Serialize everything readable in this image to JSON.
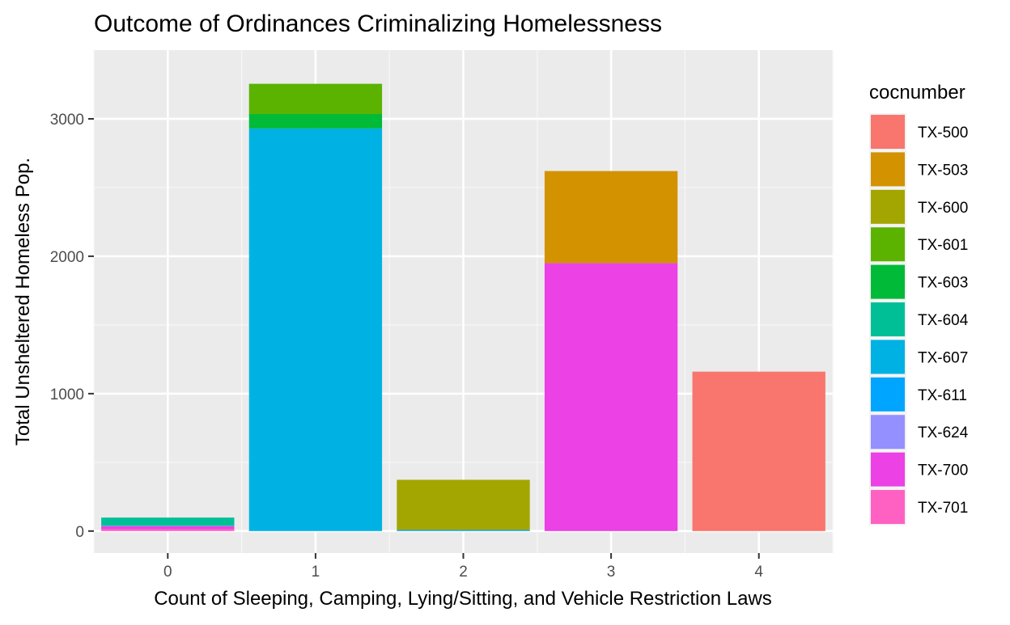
{
  "chart_data": {
    "type": "bar",
    "stacked": true,
    "title": "Outcome of Ordinances Criminalizing Homelessness",
    "xlabel": "Count of Sleeping, Camping, Lying/Sitting, and Vehicle Restriction Laws",
    "ylabel": "Total Unsheltered Homeless Pop.",
    "categories": [
      "0",
      "1",
      "2",
      "3",
      "4"
    ],
    "xlim": [
      -0.5,
      4.5
    ],
    "ylim": [
      -160,
      3500
    ],
    "yticks": [
      0,
      1000,
      2000,
      3000
    ],
    "grid": true,
    "legend": {
      "title": "cocnumber",
      "position": "right"
    },
    "series": [
      {
        "name": "TX-500",
        "color": "#F8766D",
        "values": [
          0,
          0,
          0,
          0,
          1160
        ]
      },
      {
        "name": "TX-503",
        "color": "#D39200",
        "values": [
          0,
          0,
          0,
          670,
          0
        ]
      },
      {
        "name": "TX-600",
        "color": "#A3A500",
        "values": [
          0,
          0,
          365,
          0,
          0
        ]
      },
      {
        "name": "TX-601",
        "color": "#5BB300",
        "values": [
          0,
          220,
          0,
          0,
          0
        ]
      },
      {
        "name": "TX-603",
        "color": "#00BA38",
        "values": [
          0,
          105,
          0,
          0,
          0
        ]
      },
      {
        "name": "TX-604",
        "color": "#00BF97",
        "values": [
          60,
          0,
          0,
          0,
          0
        ]
      },
      {
        "name": "TX-607",
        "color": "#00B2E4",
        "values": [
          0,
          2930,
          0,
          0,
          0
        ]
      },
      {
        "name": "TX-611",
        "color": "#00A5FF",
        "values": [
          0,
          0,
          8,
          0,
          0
        ]
      },
      {
        "name": "TX-624",
        "color": "#9590FF",
        "values": [
          2,
          0,
          0,
          0,
          0
        ]
      },
      {
        "name": "TX-700",
        "color": "#EB41E5",
        "values": [
          22,
          0,
          0,
          1950,
          0
        ]
      },
      {
        "name": "TX-701",
        "color": "#FF61C3",
        "values": [
          14,
          0,
          0,
          0,
          0
        ]
      }
    ]
  }
}
